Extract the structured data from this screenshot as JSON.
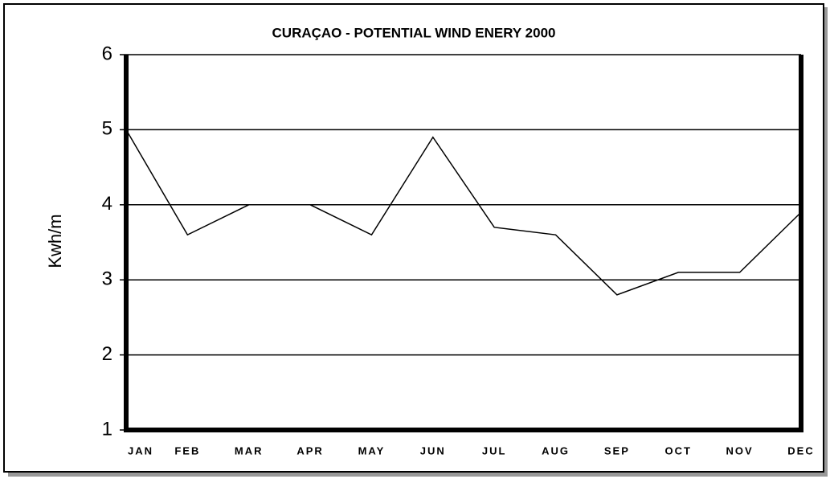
{
  "chart_data": {
    "type": "line",
    "title": "CURAÇAO - POTENTIAL WIND ENERY 2000",
    "y_label": "Kwh/m",
    "categories": [
      "JAN",
      "FEB",
      "MAR",
      "APR",
      "MAY",
      "JUN",
      "JUL",
      "AUG",
      "SEP",
      "OCT",
      "NOV",
      "DEC"
    ],
    "values": [
      5.0,
      3.6,
      4.0,
      4.0,
      3.6,
      4.9,
      3.7,
      3.6,
      2.8,
      3.1,
      3.1,
      3.9
    ],
    "color": "#000000",
    "ylim": [
      1,
      6
    ],
    "yticks": [
      1,
      2,
      3,
      4,
      5,
      6
    ],
    "grid": true
  }
}
